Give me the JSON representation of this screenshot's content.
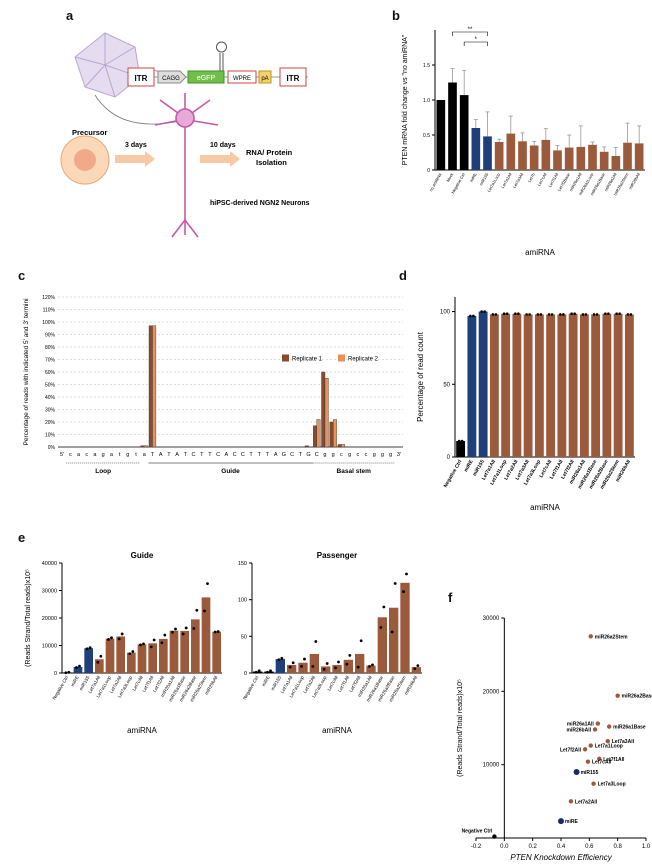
{
  "panels": {
    "a": {
      "label": "a",
      "construct": {
        "itr1": "ITR",
        "cag": "CAGG",
        "egfp": "eGFP",
        "wpre": "WPRE",
        "pa": "pA",
        "itr2": "ITR"
      },
      "precursor": "Precursor",
      "day3": "3 days",
      "day10": "10 days",
      "rna_line1": "RNA/ Protein",
      "rna_line2": "Isolation",
      "neurons": "hiPSC-derived NGN2 Neurons"
    },
    "b": {
      "label": "b"
    },
    "c": {
      "label": "c"
    },
    "d": {
      "label": "d"
    },
    "e": {
      "label": "e"
    },
    "f": {
      "label": "f"
    }
  },
  "colors": {
    "black": "#000000",
    "blue": "#1f3f7a",
    "brown": "#9c5a3c",
    "rep1": "#8b4a2b",
    "rep2": "#e8925a",
    "navy": "#1a2a66"
  },
  "chart_data": [
    {
      "id": "b",
      "type": "bar",
      "ylabel": "PTEN mRNA fold change vs \"no amiRNA\"",
      "xlabel": "amiRNA",
      "ylim": [
        0,
        2.0
      ],
      "yticks": [
        "0",
        "0.5",
        "1.0",
        "1.5"
      ],
      "sig": [
        "**",
        "*"
      ],
      "categories": [
        "no amiRNA",
        "Mock",
        "Negative Ctrl",
        "miRE",
        "miR155",
        "Let7a1Loop",
        "Let7a2All",
        "Let7a3All",
        "Let7b",
        "Let7cAll",
        "Let7f1All",
        "Let7f2Base",
        "miR26a1All",
        "miR26a1Loop",
        "miR26a1Base",
        "miR26a2All",
        "miR26a2Stem",
        "miR26bAll"
      ],
      "values": [
        1.0,
        1.25,
        1.07,
        0.6,
        0.48,
        0.4,
        0.52,
        0.41,
        0.35,
        0.43,
        0.28,
        0.32,
        0.33,
        0.36,
        0.26,
        0.2,
        0.39,
        0.38
      ],
      "errors": [
        0.0,
        0.2,
        0.35,
        0.12,
        0.35,
        0.04,
        0.25,
        0.12,
        0.06,
        0.16,
        0.07,
        0.18,
        0.3,
        0.04,
        0.07,
        0.12,
        0.28,
        0.25
      ],
      "colors": [
        "black",
        "black",
        "black",
        "blue",
        "blue",
        "brown",
        "brown",
        "brown",
        "brown",
        "brown",
        "brown",
        "brown",
        "brown",
        "brown",
        "brown",
        "brown",
        "brown",
        "brown"
      ]
    },
    {
      "id": "c",
      "type": "bar",
      "ylabel": "Percentage of reads with indicated 5' and 3' termini",
      "ylim": [
        0,
        120
      ],
      "yticks": [
        "0%",
        "10%",
        "20%",
        "30%",
        "40%",
        "50%",
        "60%",
        "70%",
        "80%",
        "90%",
        "100%",
        "110%",
        "120%"
      ],
      "sequence": [
        "5'",
        "c",
        "a",
        "c",
        "a",
        "g",
        "a",
        "t",
        "g",
        "t",
        "a",
        "T",
        "A",
        "T",
        "A",
        "T",
        "C",
        "T",
        "T",
        "C",
        "A",
        "C",
        "C",
        "T",
        "T",
        "T",
        "A",
        "G",
        "C",
        "T",
        "G",
        "C",
        "g",
        "g",
        "c",
        "g",
        "c",
        "c",
        "g",
        "g",
        "g",
        "3'"
      ],
      "regions": [
        "Loop",
        "Guide",
        "Basal stem"
      ],
      "series": [
        {
          "name": "Replicate 1",
          "peaks": [
            [
              10,
              1
            ],
            [
              11,
              97
            ],
            [
              30,
              1
            ],
            [
              31,
              17
            ],
            [
              32,
              60
            ],
            [
              33,
              20
            ],
            [
              34,
              2
            ]
          ]
        },
        {
          "name": "Replicate 2",
          "peaks": [
            [
              10,
              1
            ],
            [
              11,
              97
            ],
            [
              31,
              22
            ],
            [
              32,
              55
            ],
            [
              33,
              22
            ],
            [
              34,
              2
            ]
          ]
        }
      ]
    },
    {
      "id": "d",
      "type": "bar",
      "ylabel": "Percentage of read count",
      "xlabel": "amiRNA",
      "ylim": [
        0,
        110
      ],
      "yticks": [
        "0",
        "50",
        "100"
      ],
      "categories": [
        "Negative Ctrl",
        "miRE",
        "miR155",
        "Let7a1All",
        "Let7a1Loop",
        "Let7a2All",
        "Let7a3All",
        "Let7a3Loop",
        "Let7cAll",
        "Let7f1All",
        "Let7f2All",
        "miR26a1All",
        "miR26a1Base",
        "miR26a2Base",
        "miR26a2Stem",
        "miR26bAll"
      ],
      "values": [
        11,
        97,
        100,
        98,
        98.5,
        98.5,
        98,
        98,
        98,
        98,
        98.5,
        98,
        98,
        98.5,
        98.5,
        98
      ],
      "colors": [
        "black",
        "blue",
        "blue",
        "brown",
        "brown",
        "brown",
        "brown",
        "brown",
        "brown",
        "brown",
        "brown",
        "brown",
        "brown",
        "brown",
        "brown",
        "brown"
      ]
    },
    {
      "id": "e_guide",
      "type": "bar",
      "title": "Guide",
      "ylabel": "(Reads Strand/Total reads)x10⁵",
      "xlabel": "amiRNA",
      "ylim": [
        0,
        40000
      ],
      "yticks": [
        "0",
        "10000",
        "20000",
        "30000",
        "40000"
      ],
      "categories": [
        "Negative Ctrl",
        "miRE",
        "miR155",
        "Let7a1All",
        "Let7a1Loop",
        "Let7a2All",
        "Let7a3Loop",
        "Let7cAll",
        "Let7f1All",
        "Let7f2All",
        "miR26a1All",
        "miR26a1Base",
        "miR26a2Base",
        "miR26a2Stem",
        "miR26bAll"
      ],
      "values": [
        200,
        2200,
        9000,
        5000,
        12500,
        13300,
        7400,
        10400,
        10800,
        12400,
        15400,
        15300,
        19500,
        27500,
        15000
      ],
      "points": [
        [
          100,
          250
        ],
        [
          2000,
          2500
        ],
        [
          8800,
          9200
        ],
        [
          3900,
          6100
        ],
        [
          12200,
          12800
        ],
        [
          12400,
          14200
        ],
        [
          7000,
          7800
        ],
        [
          10200,
          10600
        ],
        [
          9500,
          12000
        ],
        [
          11000,
          13800
        ],
        [
          14800,
          16000
        ],
        [
          14200,
          16400
        ],
        [
          16200,
          22800
        ],
        [
          22600,
          32500
        ],
        [
          14900,
          15100
        ]
      ],
      "colors": [
        "black",
        "blue",
        "blue",
        "brown",
        "brown",
        "brown",
        "brown",
        "brown",
        "brown",
        "brown",
        "brown",
        "brown",
        "brown",
        "brown",
        "brown"
      ]
    },
    {
      "id": "e_passenger",
      "type": "bar",
      "title": "Passenger",
      "xlabel": "amiRNA",
      "ylim": [
        0,
        150
      ],
      "yticks": [
        "0",
        "50",
        "100",
        "150"
      ],
      "categories": [
        "Negative Ctrl",
        "miRE",
        "miR155",
        "Let7a1All",
        "Let7a1Loop",
        "Let7a2All",
        "Let7a3Loop",
        "Let7cAll",
        "Let7f1All",
        "Let7f2All",
        "miR26a1All",
        "miR26a1Base",
        "miR26a2Base",
        "miR26a2Stem",
        "miR26bAll"
      ],
      "values": [
        2,
        2,
        19,
        11,
        14,
        26,
        9,
        11,
        18,
        26,
        10,
        76,
        89,
        123,
        8
      ],
      "points": [
        [
          1,
          3
        ],
        [
          1,
          3
        ],
        [
          18,
          20
        ],
        [
          8,
          14
        ],
        [
          9,
          19
        ],
        [
          9,
          43
        ],
        [
          5,
          13
        ],
        [
          7,
          15
        ],
        [
          12,
          24
        ],
        [
          8,
          44
        ],
        [
          9,
          11
        ],
        [
          62,
          90
        ],
        [
          56,
          122
        ],
        [
          111,
          135
        ],
        [
          6,
          10
        ]
      ],
      "colors": [
        "black",
        "black",
        "blue",
        "brown",
        "brown",
        "brown",
        "brown",
        "brown",
        "brown",
        "brown",
        "brown",
        "brown",
        "brown",
        "brown",
        "brown"
      ]
    },
    {
      "id": "f",
      "type": "scatter",
      "xlabel": "PTEN Knockdown Efficiency",
      "ylabel": "(Reads Strand/Total reads)x10⁵",
      "xlim": [
        -0.2,
        1.0
      ],
      "ylim": [
        0,
        30000
      ],
      "xticks": [
        "-0.2",
        "0.0",
        "0.2",
        "0.4",
        "0.6",
        "0.8",
        "1.0"
      ],
      "yticks": [
        "10000",
        "20000",
        "30000"
      ],
      "points": [
        {
          "label": "miR26a2Stem",
          "x": 0.61,
          "y": 27500,
          "color": "brown"
        },
        {
          "label": "miR26a2Base",
          "x": 0.8,
          "y": 19400,
          "color": "brown"
        },
        {
          "label": "miR26a1All",
          "x": 0.66,
          "y": 15600,
          "color": "brown"
        },
        {
          "label": "miR26a1Base",
          "x": 0.74,
          "y": 15200,
          "color": "brown"
        },
        {
          "label": "miR26bAll",
          "x": 0.64,
          "y": 14800,
          "color": "brown"
        },
        {
          "label": "Let7a3All",
          "x": 0.73,
          "y": 13200,
          "color": "brown"
        },
        {
          "label": "Let7a1Loop",
          "x": 0.61,
          "y": 12600,
          "color": "brown"
        },
        {
          "label": "Let7f2All",
          "x": 0.57,
          "y": 12100,
          "color": "brown"
        },
        {
          "label": "Let7f1All",
          "x": 0.67,
          "y": 10800,
          "color": "brown"
        },
        {
          "label": "Let7cAll",
          "x": 0.59,
          "y": 10400,
          "color": "brown"
        },
        {
          "label": "miR155",
          "x": 0.51,
          "y": 9000,
          "color": "navy"
        },
        {
          "label": "Let7a3Loop",
          "x": 0.63,
          "y": 7400,
          "color": "brown"
        },
        {
          "label": "Let7a2All",
          "x": 0.47,
          "y": 5000,
          "color": "brown"
        },
        {
          "label": "miRE",
          "x": 0.4,
          "y": 2300,
          "color": "navy"
        },
        {
          "label": "Negative Ctrl",
          "x": -0.07,
          "y": 200,
          "color": "black"
        }
      ]
    }
  ]
}
